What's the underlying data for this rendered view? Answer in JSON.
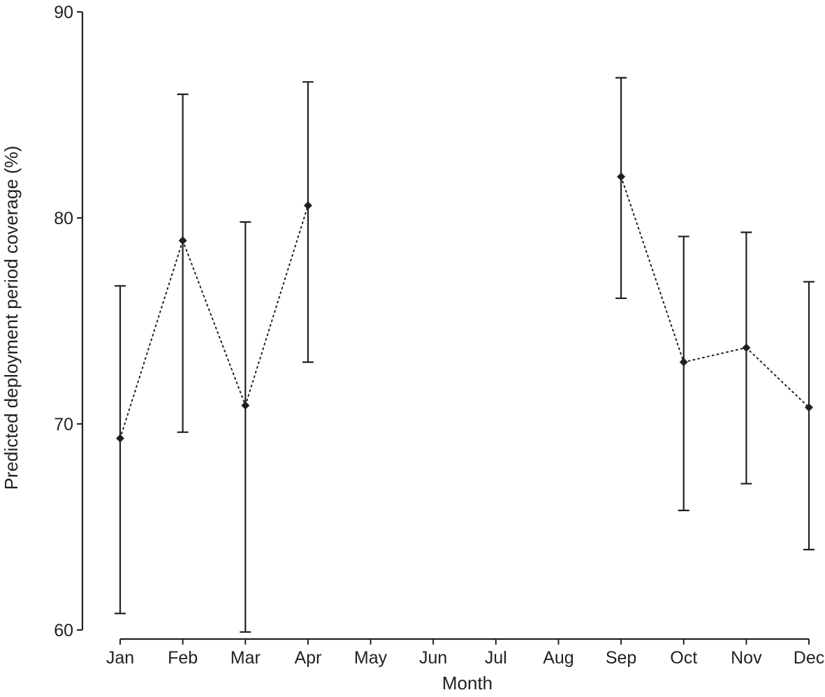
{
  "chart_data": {
    "type": "line",
    "title": "",
    "xlabel": "Month",
    "ylabel": "Predicted deployment period coverage (%)",
    "ylim": [
      60,
      90
    ],
    "yticks": [
      60,
      70,
      80,
      90
    ],
    "grid": false,
    "line_style": "dotted",
    "marker": "diamond",
    "colors": {
      "ink": "#231f20"
    },
    "categories": [
      "Jan",
      "Feb",
      "Mar",
      "Apr",
      "May",
      "Jun",
      "Jul",
      "Aug",
      "Sep",
      "Oct",
      "Nov",
      "Dec"
    ],
    "series": [
      {
        "values": [
          69.3,
          78.9,
          70.9,
          80.6,
          null,
          null,
          null,
          null,
          82.0,
          73.0,
          73.7,
          70.8
        ],
        "lower": [
          60.8,
          69.6,
          59.9,
          73.0,
          null,
          null,
          null,
          null,
          76.1,
          65.8,
          67.1,
          63.9
        ],
        "upper": [
          76.7,
          86.0,
          79.8,
          86.6,
          null,
          null,
          null,
          null,
          86.8,
          79.1,
          79.3,
          76.9
        ]
      }
    ]
  }
}
